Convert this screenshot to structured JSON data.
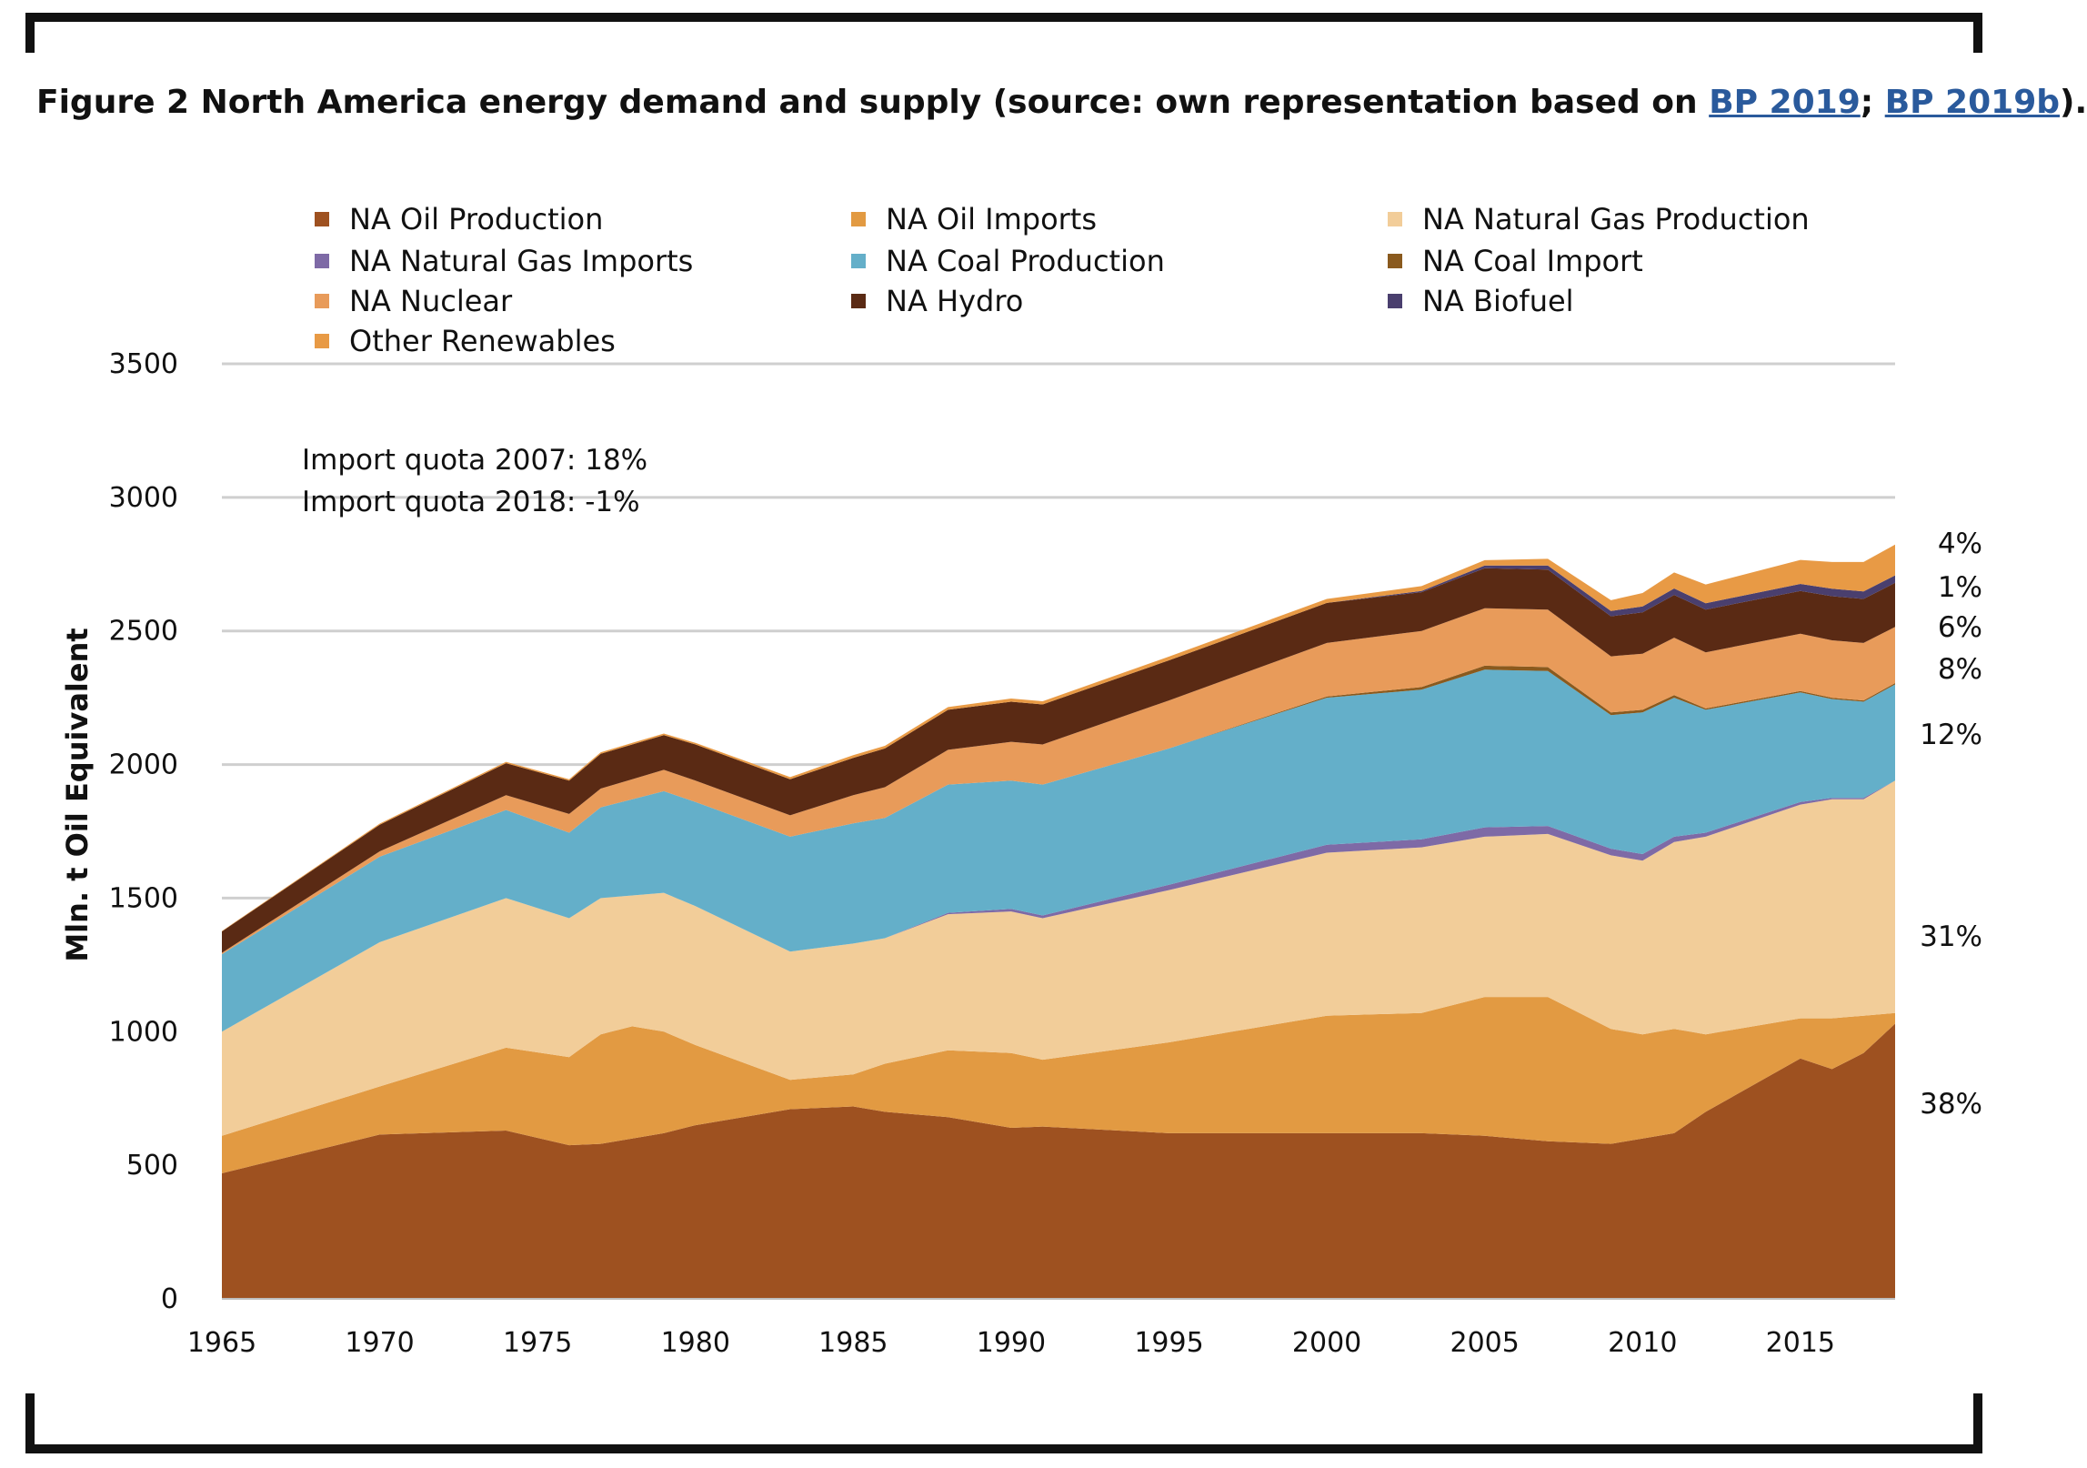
{
  "caption": {
    "prefix": "Figure 2 North America energy demand and supply (source: own representation based on ",
    "ref1": "BP 2019",
    "sep": "; ",
    "ref2": "BP 2019b",
    "suffix": ")."
  },
  "annotations": {
    "line1": "Import quota 2007: 18%",
    "line2": "Import quota 2018: -1%"
  },
  "chart_data": {
    "type": "area",
    "stacked": true,
    "title": "",
    "xlabel": "",
    "ylabel": "Mln. t Oil Equivalent",
    "xlim": [
      1965,
      2018
    ],
    "ylim": [
      0,
      3500
    ],
    "x_ticks": [
      "1965",
      "1970",
      "1975",
      "1980",
      "1985",
      "1990",
      "1995",
      "2000",
      "2005",
      "2010",
      "2015"
    ],
    "y_ticks": [
      "0",
      "500",
      "1000",
      "1500",
      "2000",
      "2500",
      "3000",
      "3500"
    ],
    "grid": "horizontal",
    "legend_position": "top",
    "x": [
      1965,
      1970,
      1974,
      1976,
      1977,
      1978,
      1979,
      1980,
      1983,
      1985,
      1986,
      1988,
      1990,
      1991,
      1995,
      2000,
      2003,
      2005,
      2007,
      2009,
      2010,
      2011,
      2012,
      2015,
      2016,
      2017,
      2018
    ],
    "series": [
      {
        "name": "NA Oil Production",
        "color": "#9e5120",
        "values": [
          470,
          615,
          630,
          575,
          580,
          600,
          620,
          650,
          710,
          720,
          700,
          680,
          640,
          645,
          620,
          620,
          620,
          610,
          590,
          580,
          600,
          620,
          700,
          900,
          860,
          920,
          1030
        ]
      },
      {
        "name": "NA Oil Imports",
        "color": "#e29a42",
        "values": [
          140,
          180,
          310,
          330,
          410,
          420,
          380,
          300,
          110,
          120,
          180,
          250,
          280,
          250,
          340,
          440,
          450,
          520,
          540,
          430,
          390,
          390,
          290,
          150,
          190,
          140,
          40
        ]
      },
      {
        "name": "NA Natural Gas Production",
        "color": "#f2cd99",
        "values": [
          390,
          540,
          560,
          520,
          510,
          490,
          520,
          520,
          480,
          490,
          470,
          510,
          530,
          530,
          570,
          610,
          620,
          600,
          610,
          650,
          650,
          700,
          740,
          800,
          820,
          810,
          870
        ]
      },
      {
        "name": "NA Natural Gas Imports",
        "color": "#7e6aa6",
        "values": [
          0,
          0,
          0,
          0,
          0,
          0,
          0,
          0,
          0,
          0,
          0,
          5,
          10,
          10,
          20,
          30,
          30,
          35,
          30,
          25,
          25,
          20,
          15,
          10,
          5,
          5,
          0
        ]
      },
      {
        "name": "NA Coal Production",
        "color": "#64afc9",
        "values": [
          290,
          320,
          330,
          320,
          340,
          360,
          380,
          390,
          430,
          450,
          450,
          480,
          480,
          490,
          510,
          550,
          560,
          590,
          580,
          500,
          530,
          520,
          460,
          410,
          370,
          360,
          360
        ]
      },
      {
        "name": "NA Coal Import",
        "color": "#8a5a1e",
        "values": [
          0,
          0,
          0,
          0,
          0,
          0,
          0,
          0,
          0,
          0,
          0,
          0,
          0,
          0,
          0,
          5,
          10,
          15,
          15,
          10,
          10,
          10,
          5,
          5,
          5,
          5,
          5
        ]
      },
      {
        "name": "NA Nuclear",
        "color": "#e89b5a",
        "values": [
          5,
          20,
          55,
          70,
          70,
          75,
          80,
          80,
          80,
          105,
          115,
          130,
          145,
          150,
          180,
          200,
          210,
          215,
          215,
          210,
          210,
          215,
          210,
          215,
          215,
          215,
          210
        ]
      },
      {
        "name": "NA Hydro",
        "color": "#5a2a14",
        "values": [
          80,
          100,
          120,
          125,
          130,
          130,
          130,
          135,
          135,
          140,
          145,
          150,
          150,
          150,
          150,
          150,
          145,
          150,
          150,
          150,
          155,
          160,
          160,
          160,
          165,
          165,
          165
        ]
      },
      {
        "name": "NA Biofuel",
        "color": "#4a3f6e",
        "values": [
          0,
          0,
          0,
          0,
          0,
          0,
          0,
          0,
          0,
          0,
          0,
          0,
          0,
          0,
          0,
          0,
          5,
          10,
          15,
          20,
          22,
          24,
          24,
          26,
          28,
          28,
          28
        ]
      },
      {
        "name": "Other Renewables",
        "color": "#e89a45",
        "values": [
          2,
          4,
          5,
          5,
          6,
          6,
          6,
          6,
          8,
          10,
          10,
          10,
          12,
          12,
          14,
          15,
          18,
          20,
          25,
          40,
          50,
          60,
          70,
          90,
          100,
          110,
          115
        ]
      }
    ],
    "share_labels": [
      "4%",
      "1%",
      "6%",
      "8%",
      "12%",
      "31%",
      "38%"
    ]
  },
  "legend_columns": [
    [
      0,
      3,
      6,
      9
    ],
    [
      1,
      4,
      7
    ],
    [
      2,
      5,
      8
    ]
  ]
}
